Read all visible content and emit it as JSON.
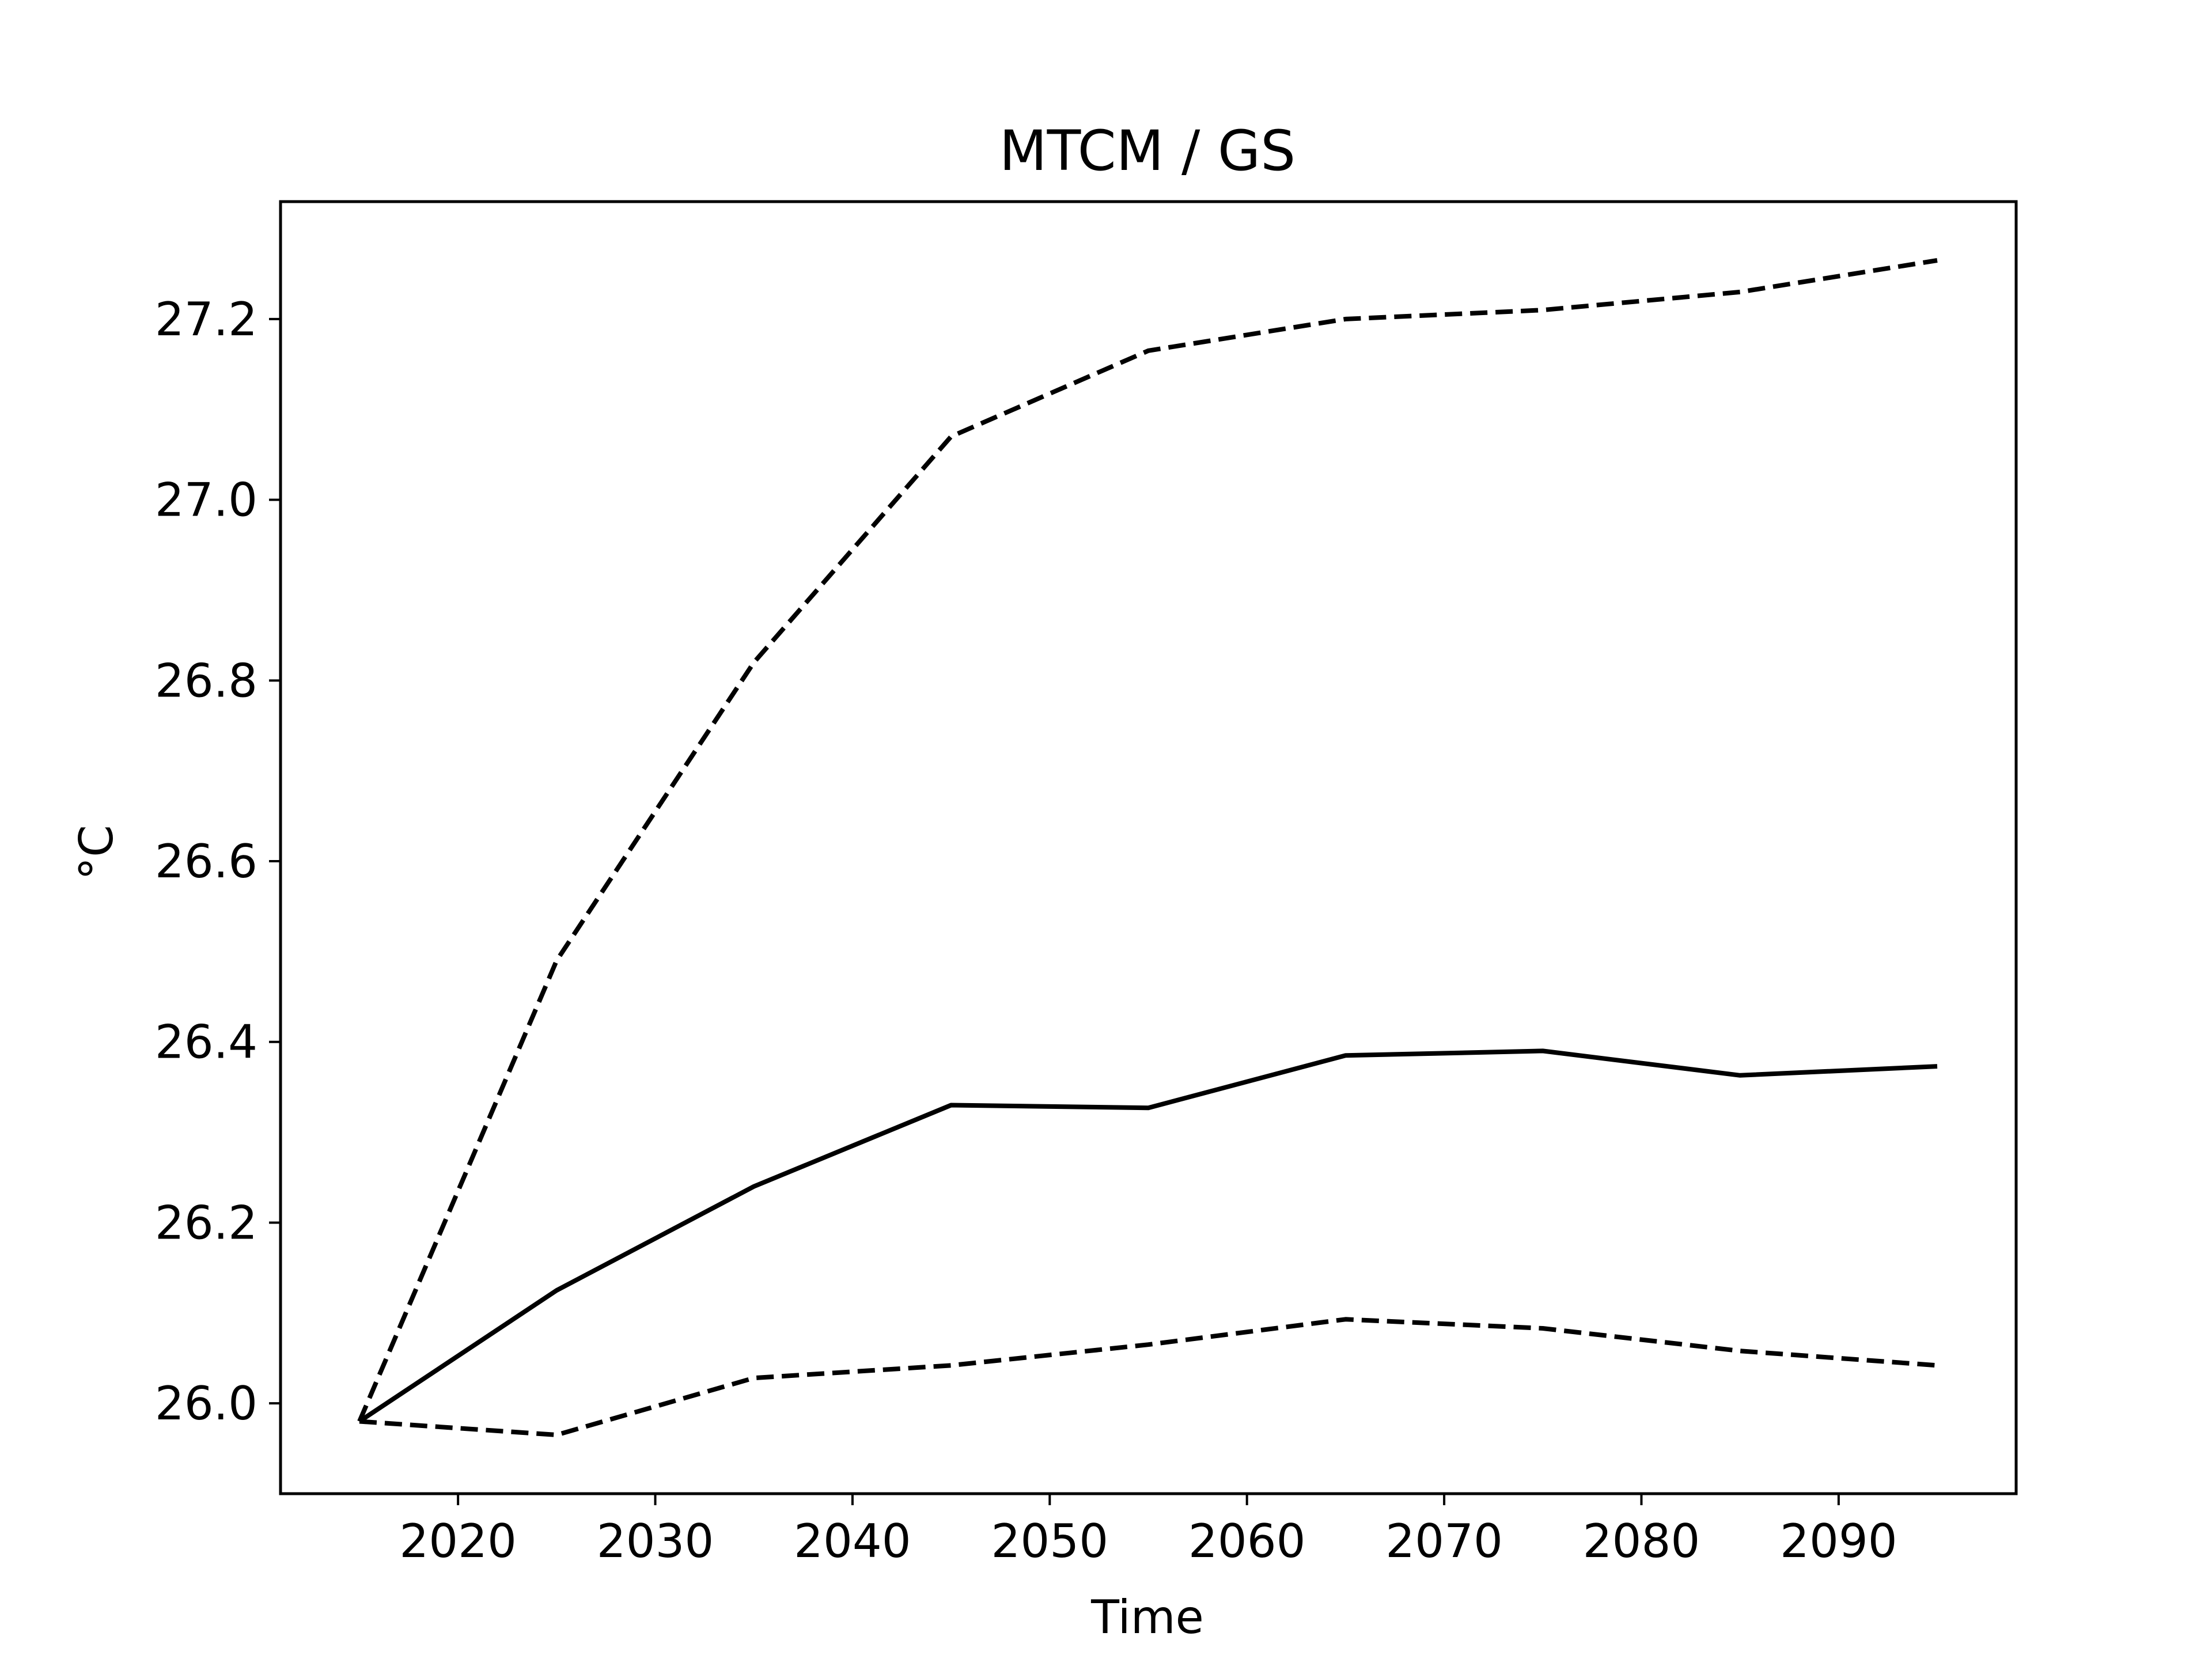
{
  "chart_data": {
    "type": "line",
    "title": "MTCM / GS",
    "xlabel": "Time",
    "ylabel": "°C",
    "xlim": [
      2011,
      2099
    ],
    "ylim": [
      25.9,
      27.33
    ],
    "x_ticks": [
      2020,
      2030,
      2040,
      2050,
      2060,
      2070,
      2080,
      2090
    ],
    "y_ticks": [
      26.0,
      26.2,
      26.4,
      26.6,
      26.8,
      27.0,
      27.2
    ],
    "grid": false,
    "legend": "none",
    "x": [
      2015,
      2025,
      2035,
      2045,
      2055,
      2065,
      2075,
      2085,
      2095
    ],
    "series": [
      {
        "style": "solid",
        "color": "#000000",
        "values": [
          25.98,
          26.125,
          26.24,
          26.33,
          26.327,
          26.385,
          26.39,
          26.363,
          26.373
        ]
      },
      {
        "style": "dashed",
        "color": "#000000",
        "values": [
          25.98,
          26.49,
          26.82,
          27.07,
          27.165,
          27.2,
          27.21,
          27.23,
          27.265
        ]
      },
      {
        "style": "dashed",
        "color": "#000000",
        "values": [
          25.98,
          25.965,
          26.028,
          26.042,
          26.065,
          26.093,
          26.083,
          26.058,
          26.042
        ]
      }
    ]
  }
}
